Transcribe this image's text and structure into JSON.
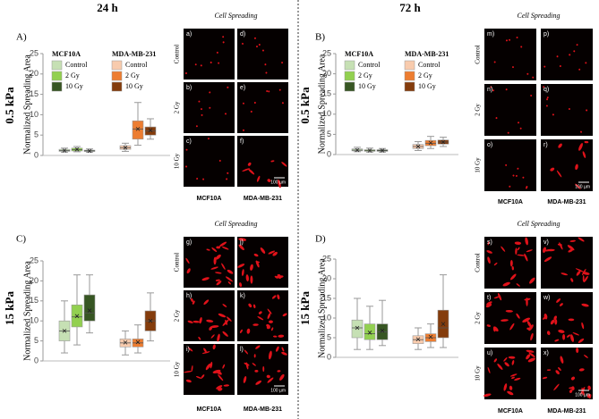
{
  "columns": [
    "24 h",
    "72 h"
  ],
  "chart_data": [
    {
      "type": "box",
      "panel_label": "A)",
      "stiffness": "0.5 kPa",
      "ylabel": "Normalized Spreading Area",
      "ylim": [
        0,
        25
      ],
      "yticks": [
        0,
        5,
        10,
        15,
        20,
        25
      ],
      "legend_groups": [
        "MCF10A",
        "MDA-MB-231"
      ],
      "series": [
        {
          "name": "Control",
          "color": "#c6e0b4",
          "whisker_low": 0.8,
          "q1": 1.0,
          "median": 1.2,
          "q3": 1.5,
          "whisker_high": 1.8,
          "mean": 1.2
        },
        {
          "name": "2 Gy",
          "color": "#92d050",
          "whisker_low": 0.9,
          "q1": 1.1,
          "median": 1.4,
          "q3": 1.8,
          "whisker_high": 2.2,
          "mean": 1.5
        },
        {
          "name": "10 Gy",
          "color": "#375623",
          "whisker_low": 0.8,
          "q1": 1.0,
          "median": 1.1,
          "q3": 1.3,
          "whisker_high": 1.6,
          "mean": 1.1
        },
        {
          "name": "Control",
          "color": "#f8cbad",
          "whisker_low": 1.0,
          "q1": 1.5,
          "median": 1.9,
          "q3": 2.4,
          "whisker_high": 3.0,
          "mean": 1.9
        },
        {
          "name": "2 Gy",
          "color": "#ed7d31",
          "whisker_low": 2.5,
          "q1": 4.0,
          "median": 6.5,
          "q3": 8.5,
          "whisker_high": 13.0,
          "mean": 6.5
        },
        {
          "name": "10 Gy",
          "color": "#843c0c",
          "whisker_low": 4.0,
          "q1": 5.0,
          "median": 6.0,
          "q3": 7.0,
          "whisker_high": 9.0,
          "mean": 6.2
        }
      ]
    },
    {
      "type": "box",
      "panel_label": "B)",
      "stiffness": "0.5 kPa",
      "ylabel": "Normalized Spreading Area",
      "ylim": [
        0,
        25
      ],
      "yticks": [
        0,
        5,
        10,
        15,
        20,
        25
      ],
      "legend_groups": [
        "MCF10A",
        "MDA-MB-231"
      ],
      "series": [
        {
          "name": "Control",
          "color": "#c6e0b4",
          "whisker_low": 0.7,
          "q1": 0.9,
          "median": 1.1,
          "q3": 1.4,
          "whisker_high": 1.8,
          "mean": 1.1
        },
        {
          "name": "2 Gy",
          "color": "#92d050",
          "whisker_low": 0.6,
          "q1": 0.8,
          "median": 1.0,
          "q3": 1.2,
          "whisker_high": 1.6,
          "mean": 1.0
        },
        {
          "name": "10 Gy",
          "color": "#375623",
          "whisker_low": 0.6,
          "q1": 0.8,
          "median": 1.0,
          "q3": 1.2,
          "whisker_high": 1.5,
          "mean": 1.0
        },
        {
          "name": "Control",
          "color": "#f8cbad",
          "whisker_low": 1.0,
          "q1": 1.5,
          "median": 2.0,
          "q3": 2.5,
          "whisker_high": 3.2,
          "mean": 2.0
        },
        {
          "name": "2 Gy",
          "color": "#ed7d31",
          "whisker_low": 1.5,
          "q1": 2.2,
          "median": 2.8,
          "q3": 3.5,
          "whisker_high": 4.5,
          "mean": 2.9
        },
        {
          "name": "10 Gy",
          "color": "#843c0c",
          "whisker_low": 2.0,
          "q1": 2.6,
          "median": 3.1,
          "q3": 3.6,
          "whisker_high": 4.3,
          "mean": 3.1
        }
      ]
    },
    {
      "type": "box",
      "panel_label": "C)",
      "stiffness": "15 kPa",
      "ylabel": "Normalized Spreading Area",
      "ylim": [
        0,
        25
      ],
      "yticks": [
        0,
        5,
        10,
        15,
        20,
        25
      ],
      "series": [
        {
          "color": "#c6e0b4",
          "whisker_low": 2.0,
          "q1": 5.0,
          "median": 7.5,
          "q3": 10.0,
          "whisker_high": 15.0,
          "mean": 7.5
        },
        {
          "color": "#92d050",
          "whisker_low": 4.0,
          "q1": 8.5,
          "median": 11.0,
          "q3": 14.0,
          "whisker_high": 21.5,
          "mean": 11.2
        },
        {
          "color": "#375623",
          "whisker_low": 7.0,
          "q1": 10.0,
          "median": 12.0,
          "q3": 16.5,
          "whisker_high": 21.5,
          "mean": 12.6
        },
        {
          "color": "#f8cbad",
          "whisker_low": 1.5,
          "q1": 3.5,
          "median": 4.5,
          "q3": 5.5,
          "whisker_high": 7.5,
          "mean": 4.6
        },
        {
          "color": "#ed7d31",
          "whisker_low": 2.0,
          "q1": 3.5,
          "median": 4.5,
          "q3": 5.5,
          "whisker_high": 9.0,
          "mean": 4.7
        },
        {
          "color": "#843c0c",
          "whisker_low": 5.0,
          "q1": 7.5,
          "median": 10.0,
          "q3": 12.5,
          "whisker_high": 17.0,
          "mean": 10.0
        }
      ]
    },
    {
      "type": "box",
      "panel_label": "D)",
      "stiffness": "15 kPa",
      "ylabel": "Normalized Spreading Area",
      "ylim": [
        0,
        25
      ],
      "yticks": [
        0,
        5,
        10,
        15,
        20,
        25
      ],
      "series": [
        {
          "color": "#c6e0b4",
          "whisker_low": 2.0,
          "q1": 5.0,
          "median": 7.5,
          "q3": 9.5,
          "whisker_high": 15.0,
          "mean": 7.5
        },
        {
          "color": "#92d050",
          "whisker_low": 2.0,
          "q1": 4.5,
          "median": 6.0,
          "q3": 8.5,
          "whisker_high": 13.0,
          "mean": 6.3
        },
        {
          "color": "#375623",
          "whisker_low": 3.0,
          "q1": 4.5,
          "median": 6.5,
          "q3": 8.5,
          "whisker_high": 14.5,
          "mean": 6.8
        },
        {
          "color": "#f8cbad",
          "whisker_low": 2.0,
          "q1": 3.5,
          "median": 4.5,
          "q3": 5.5,
          "whisker_high": 7.5,
          "mean": 4.6
        },
        {
          "color": "#ed7d31",
          "whisker_low": 2.5,
          "q1": 4.0,
          "median": 5.0,
          "q3": 6.0,
          "whisker_high": 8.5,
          "mean": 5.2
        },
        {
          "color": "#843c0c",
          "whisker_low": 2.5,
          "q1": 5.0,
          "median": 7.5,
          "q3": 12.0,
          "whisker_high": 21.0,
          "mean": 8.5
        }
      ]
    }
  ],
  "image_panels": [
    {
      "title": "Cell Spreading",
      "rows": [
        "Control",
        "2 Gy",
        "10 Gy"
      ],
      "columns": [
        "MCF10A",
        "MDA-MB-231"
      ],
      "letters": [
        [
          "a)",
          "d)"
        ],
        [
          "b)",
          "e)"
        ],
        [
          "c)",
          "f)"
        ]
      ],
      "scale_bar": "100 µm"
    },
    {
      "title": "Cell Spreading",
      "rows": [
        "Control",
        "2 Gy",
        "10 Gy"
      ],
      "columns": [
        "MCF10A",
        "MDA-MB-231"
      ],
      "letters": [
        [
          "m)",
          "p)"
        ],
        [
          "n)",
          "q)"
        ],
        [
          "o)",
          "r)"
        ]
      ],
      "scale_bar": "100 µm"
    },
    {
      "title": "Cell Spreading",
      "rows": [
        "Control",
        "2 Gy",
        "10 Gy"
      ],
      "columns": [
        "MCF10A",
        "MDA-MB-231"
      ],
      "letters": [
        [
          "g)",
          "j)"
        ],
        [
          "h)",
          "k)"
        ],
        [
          "i)",
          "l)"
        ]
      ],
      "scale_bar": "100 µm"
    },
    {
      "title": "Cell Spreading",
      "rows": [
        "Control",
        "2 Gy",
        "10 Gy"
      ],
      "columns": [
        "MCF10A",
        "MDA-MB-231"
      ],
      "letters": [
        [
          "s)",
          "v)"
        ],
        [
          "t)",
          "w)"
        ],
        [
          "u)",
          "x)"
        ]
      ],
      "scale_bar": "100 µm"
    }
  ]
}
